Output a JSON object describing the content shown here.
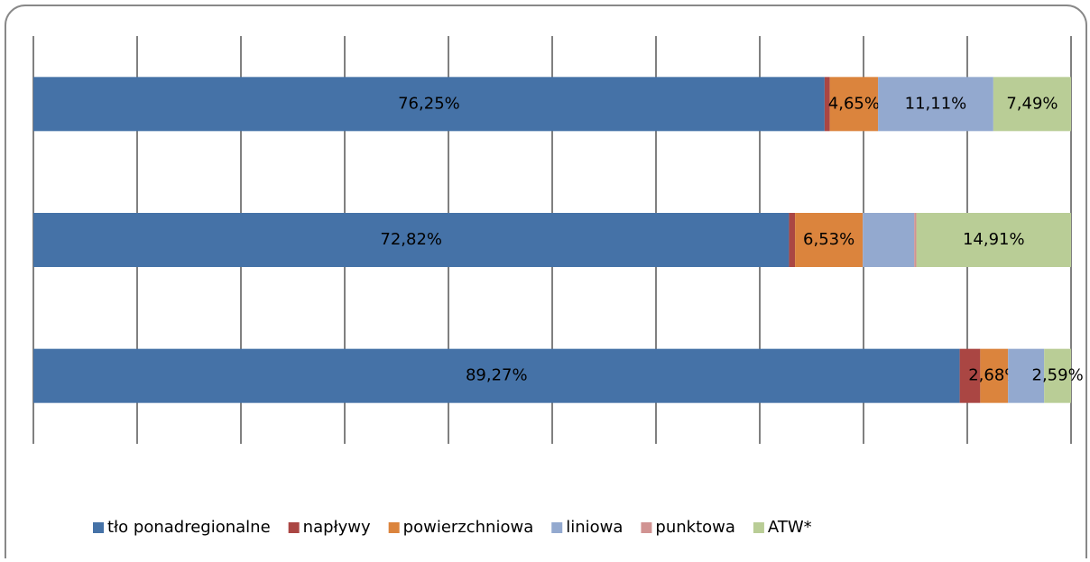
{
  "chart_data": {
    "type": "stacked_barh",
    "categories": [
      null,
      null,
      null
    ],
    "series": [
      {
        "name": "tło ponadregionalne",
        "color": "#4572a7",
        "values": [
          76.25,
          72.82,
          89.27
        ],
        "value_labels": [
          "76,25%",
          "72,82%",
          "89,27%"
        ]
      },
      {
        "name": "napływy",
        "color": "#aa4643",
        "values": [
          0.5,
          0.58,
          1.98
        ],
        "value_labels": [
          null,
          null,
          null
        ]
      },
      {
        "name": "powierzchniowa",
        "color": "#db843d",
        "values": [
          4.65,
          6.53,
          2.68
        ],
        "value_labels": [
          "4,65%",
          "6,53%",
          "2,68%"
        ]
      },
      {
        "name": "liniowa",
        "color": "#93a9cf",
        "values": [
          11.11,
          4.96,
          3.48
        ],
        "value_labels": [
          "11,11%",
          null,
          null
        ]
      },
      {
        "name": "punktowa",
        "color": "#d19392",
        "values": [
          0,
          0.2,
          0
        ],
        "value_labels": [
          null,
          null,
          null
        ]
      },
      {
        "name": "ATW*",
        "color": "#b9cd96",
        "values": [
          7.49,
          14.91,
          2.59
        ],
        "value_labels": [
          "7,49%",
          "14,91%",
          "2,59%"
        ]
      }
    ],
    "xlim": [
      0,
      100
    ],
    "xticks": [
      0,
      10,
      20,
      30,
      40,
      50,
      60,
      70,
      80,
      90,
      100
    ],
    "grid": true,
    "legend": "bottom"
  }
}
